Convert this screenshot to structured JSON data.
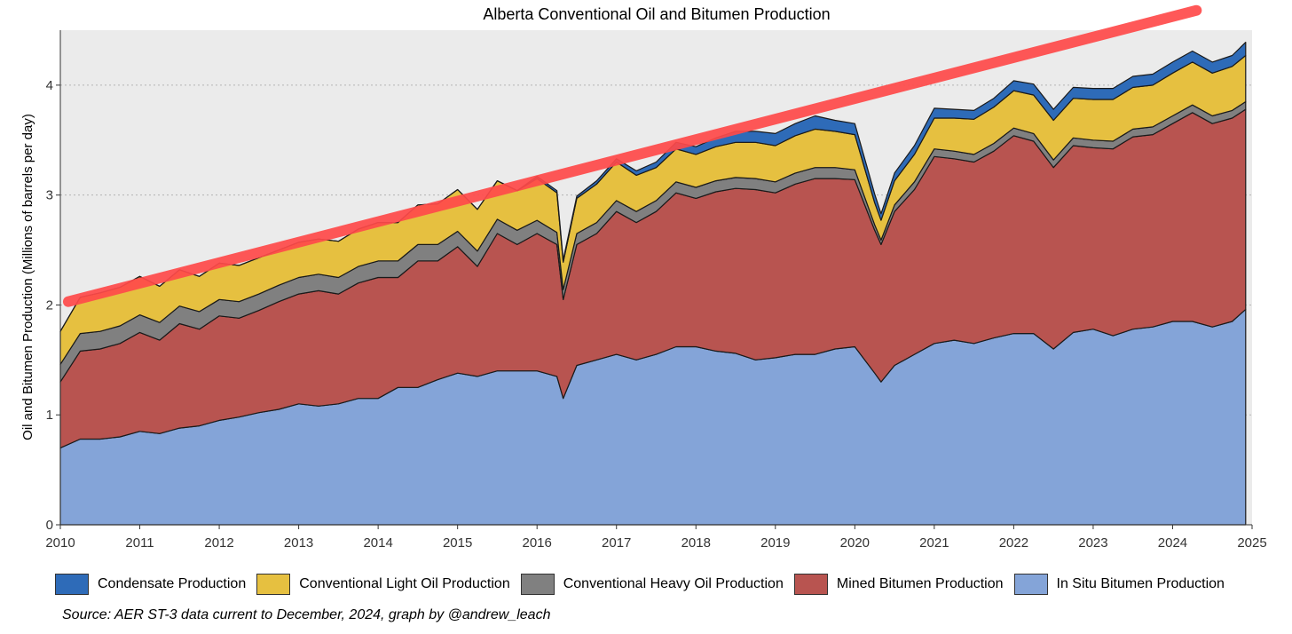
{
  "chart_data": {
    "type": "area",
    "title": "Alberta Conventional Oil and Bitumen Production",
    "ylabel": "Oil and Bitumen Production (Millions of barrels per day)",
    "xlabel": "",
    "xlim": [
      2010,
      2025
    ],
    "ylim": [
      0,
      4.5
    ],
    "x_ticks": [
      "2010",
      "2011",
      "2012",
      "2013",
      "2014",
      "2015",
      "2016",
      "2017",
      "2018",
      "2019",
      "2020",
      "2021",
      "2022",
      "2023",
      "2024",
      "2025"
    ],
    "y_ticks": [
      "0",
      "1",
      "2",
      "3",
      "4"
    ],
    "grid": "horizontal dotted",
    "legend_position": "bottom",
    "stacking_order": "bottom-to-top: In Situ, Mined, Conventional Heavy, Conventional Light, Condensate",
    "x": [
      2010.0,
      2010.25,
      2010.5,
      2010.75,
      2011.0,
      2011.25,
      2011.5,
      2011.75,
      2012.0,
      2012.25,
      2012.5,
      2012.75,
      2013.0,
      2013.25,
      2013.5,
      2013.75,
      2014.0,
      2014.25,
      2014.5,
      2014.75,
      2015.0,
      2015.25,
      2015.5,
      2015.75,
      2016.0,
      2016.25,
      2016.33,
      2016.5,
      2016.75,
      2017.0,
      2017.25,
      2017.5,
      2017.75,
      2018.0,
      2018.25,
      2018.5,
      2018.75,
      2019.0,
      2019.25,
      2019.5,
      2019.75,
      2020.0,
      2020.25,
      2020.33,
      2020.5,
      2020.75,
      2021.0,
      2021.25,
      2021.5,
      2021.75,
      2022.0,
      2022.25,
      2022.5,
      2022.75,
      2023.0,
      2023.25,
      2023.5,
      2023.75,
      2024.0,
      2024.25,
      2024.5,
      2024.75,
      2024.92
    ],
    "series": [
      {
        "name": "Condensate Production",
        "color": "#2e6bb8",
        "values": [
          0.0,
          0.0,
          0.0,
          0.0,
          0.0,
          0.0,
          0.0,
          0.0,
          0.0,
          0.0,
          0.0,
          0.0,
          0.0,
          0.0,
          0.0,
          0.0,
          0.0,
          0.0,
          0.0,
          0.0,
          0.0,
          0.0,
          0.0,
          0.0,
          0.02,
          0.02,
          0.02,
          0.02,
          0.03,
          0.03,
          0.04,
          0.05,
          0.06,
          0.07,
          0.08,
          0.1,
          0.1,
          0.11,
          0.11,
          0.12,
          0.1,
          0.1,
          0.08,
          0.06,
          0.07,
          0.08,
          0.09,
          0.08,
          0.08,
          0.08,
          0.09,
          0.1,
          0.1,
          0.1,
          0.1,
          0.1,
          0.1,
          0.1,
          0.1,
          0.1,
          0.1,
          0.1,
          0.12
        ]
      },
      {
        "name": "Conventional Light Oil Production",
        "color": "#e6c040",
        "values": [
          0.3,
          0.33,
          0.35,
          0.35,
          0.35,
          0.33,
          0.33,
          0.32,
          0.33,
          0.33,
          0.33,
          0.32,
          0.32,
          0.32,
          0.33,
          0.34,
          0.35,
          0.35,
          0.36,
          0.37,
          0.38,
          0.38,
          0.35,
          0.36,
          0.38,
          0.36,
          0.25,
          0.32,
          0.35,
          0.35,
          0.33,
          0.3,
          0.3,
          0.3,
          0.31,
          0.32,
          0.33,
          0.33,
          0.34,
          0.35,
          0.33,
          0.32,
          0.2,
          0.18,
          0.22,
          0.25,
          0.28,
          0.3,
          0.32,
          0.33,
          0.34,
          0.35,
          0.36,
          0.36,
          0.37,
          0.38,
          0.38,
          0.38,
          0.39,
          0.39,
          0.39,
          0.4,
          0.42
        ]
      },
      {
        "name": "Conventional Heavy Oil Production",
        "color": "#808080",
        "values": [
          0.16,
          0.16,
          0.16,
          0.16,
          0.16,
          0.16,
          0.16,
          0.16,
          0.15,
          0.15,
          0.15,
          0.15,
          0.15,
          0.15,
          0.15,
          0.15,
          0.15,
          0.15,
          0.15,
          0.15,
          0.14,
          0.14,
          0.13,
          0.13,
          0.12,
          0.11,
          0.09,
          0.1,
          0.1,
          0.1,
          0.1,
          0.1,
          0.1,
          0.1,
          0.1,
          0.1,
          0.1,
          0.1,
          0.1,
          0.1,
          0.1,
          0.09,
          0.05,
          0.04,
          0.06,
          0.07,
          0.07,
          0.07,
          0.07,
          0.07,
          0.07,
          0.07,
          0.07,
          0.07,
          0.07,
          0.07,
          0.07,
          0.07,
          0.07,
          0.07,
          0.07,
          0.07,
          0.07
        ]
      },
      {
        "name": "Mined Bitumen Production",
        "color": "#b85450",
        "values": [
          0.6,
          0.8,
          0.82,
          0.85,
          0.9,
          0.85,
          0.95,
          0.88,
          0.95,
          0.9,
          0.93,
          0.98,
          1.0,
          1.05,
          1.0,
          1.05,
          1.1,
          1.0,
          1.15,
          1.08,
          1.15,
          1.0,
          1.25,
          1.15,
          1.25,
          1.2,
          0.9,
          1.1,
          1.15,
          1.3,
          1.25,
          1.3,
          1.4,
          1.35,
          1.45,
          1.5,
          1.55,
          1.5,
          1.55,
          1.6,
          1.55,
          1.52,
          1.3,
          1.25,
          1.4,
          1.5,
          1.7,
          1.65,
          1.65,
          1.7,
          1.8,
          1.75,
          1.65,
          1.7,
          1.65,
          1.7,
          1.75,
          1.75,
          1.8,
          1.9,
          1.85,
          1.85,
          1.82
        ]
      },
      {
        "name": "In Situ Bitumen Production",
        "color": "#84a4d8",
        "values": [
          0.7,
          0.78,
          0.78,
          0.8,
          0.85,
          0.83,
          0.88,
          0.9,
          0.95,
          0.98,
          1.02,
          1.05,
          1.1,
          1.08,
          1.1,
          1.15,
          1.15,
          1.25,
          1.25,
          1.32,
          1.38,
          1.35,
          1.4,
          1.4,
          1.4,
          1.35,
          1.15,
          1.45,
          1.5,
          1.55,
          1.5,
          1.55,
          1.62,
          1.62,
          1.58,
          1.56,
          1.5,
          1.52,
          1.55,
          1.55,
          1.6,
          1.62,
          1.38,
          1.3,
          1.45,
          1.55,
          1.65,
          1.68,
          1.65,
          1.7,
          1.74,
          1.74,
          1.6,
          1.75,
          1.78,
          1.72,
          1.78,
          1.8,
          1.85,
          1.85,
          1.8,
          1.85,
          1.96
        ]
      }
    ],
    "annotation": {
      "type": "trend-line",
      "color": "#ff4a4a",
      "x": [
        2010.1,
        2024.3
      ],
      "y": [
        2.03,
        4.68
      ]
    }
  },
  "legend": [
    {
      "label": "Condensate Production",
      "color": "#2e6bb8"
    },
    {
      "label": "Conventional Light Oil Production",
      "color": "#e6c040"
    },
    {
      "label": "Conventional Heavy Oil Production",
      "color": "#808080"
    },
    {
      "label": "Mined Bitumen Production",
      "color": "#b85450"
    },
    {
      "label": "In Situ Bitumen Production",
      "color": "#84a4d8"
    }
  ],
  "source": "Source: AER ST-3 data current to December, 2024, graph by @andrew_leach"
}
